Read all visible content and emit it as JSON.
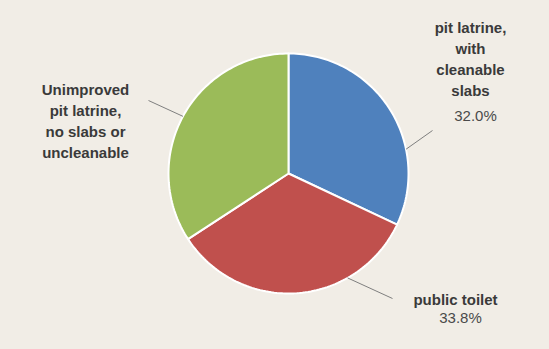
{
  "chart_data": {
    "type": "pie",
    "categories": [
      "pit latrine, with cleanable slabs",
      "public toilet",
      "Unimproved pit latrine, no slabs or uncleanable"
    ],
    "values": [
      32.0,
      33.8,
      34.2
    ],
    "value_labels": [
      "32.0%",
      "33.8%",
      null
    ],
    "colors": [
      "#4f81bd",
      "#c0504d",
      "#9bbb59"
    ],
    "data_labels": true
  }
}
